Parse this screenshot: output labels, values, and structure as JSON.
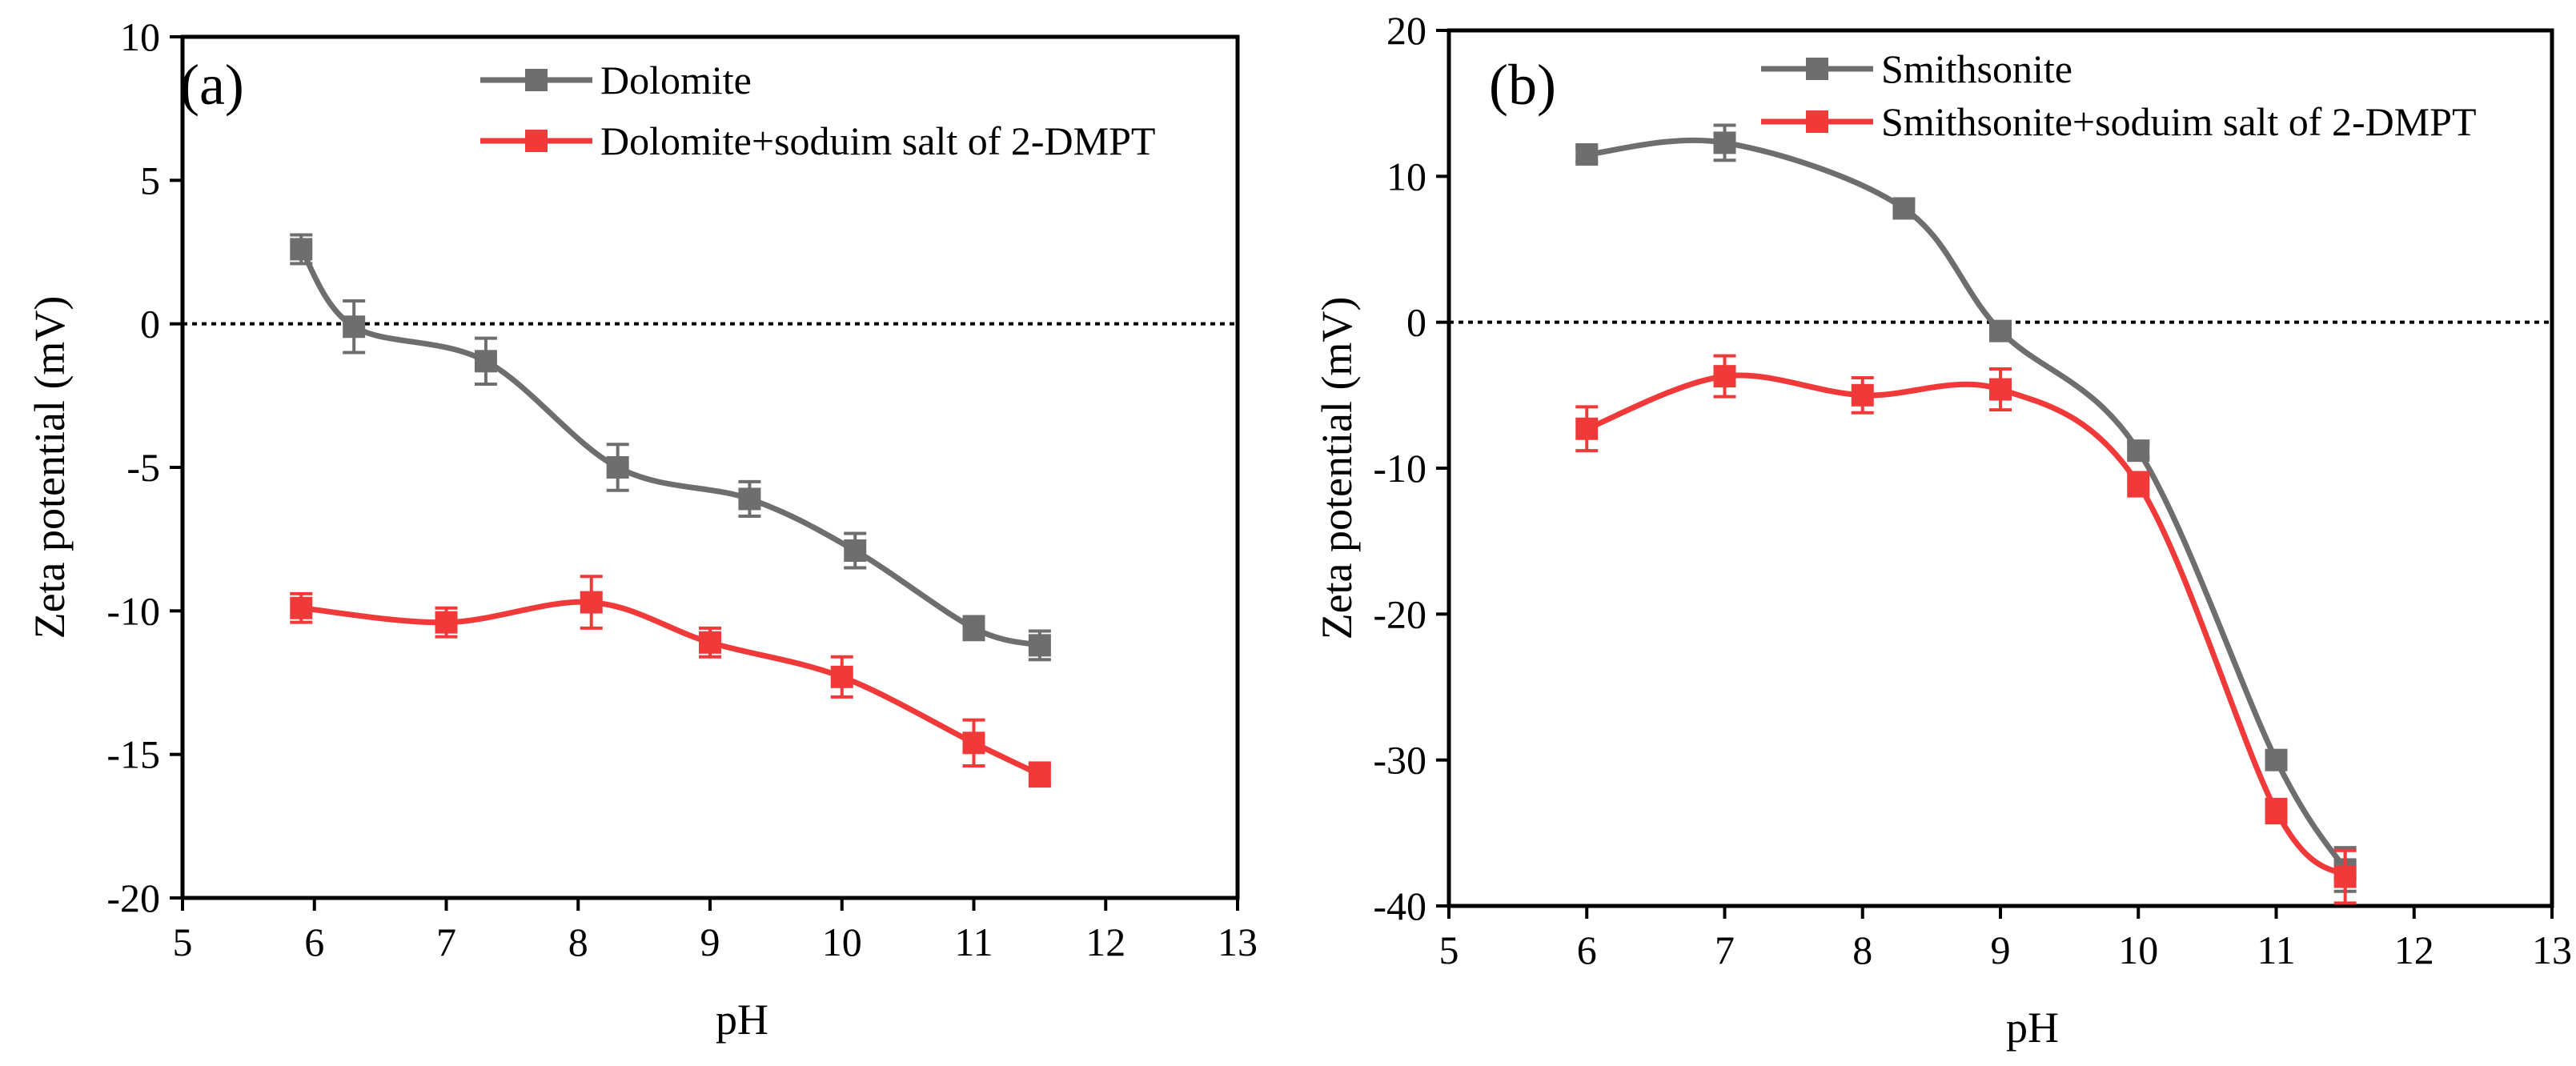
{
  "chart_data": [
    {
      "type": "line",
      "panel_label": "(a)",
      "xlabel": "pH",
      "ylabel": "Zeta potential (mV)",
      "xlim": [
        5,
        13
      ],
      "ylim": [
        -20,
        10
      ],
      "xticks": [
        5,
        6,
        7,
        8,
        9,
        10,
        11,
        12,
        13
      ],
      "yticks": [
        10,
        5,
        0,
        -5,
        -10,
        -15,
        -20
      ],
      "reference_line": 0,
      "legend_position": "top-right",
      "series": [
        {
          "name": "Dolomite",
          "color": "#6e6e6e",
          "x": [
            5.9,
            6.3,
            7.3,
            8.3,
            9.3,
            10.1,
            11.0,
            11.5
          ],
          "y": [
            2.6,
            -0.1,
            -1.3,
            -5.0,
            -6.1,
            -7.9,
            -10.6,
            -11.2
          ],
          "error": [
            0.5,
            0.9,
            0.8,
            0.8,
            0.6,
            0.6,
            0.4,
            0.5
          ]
        },
        {
          "name": "Dolomite+soduim salt of 2-DMPT",
          "color": "#f03a3a",
          "x": [
            5.9,
            7.0,
            8.1,
            9.0,
            10.0,
            11.0,
            11.5
          ],
          "y": [
            -9.9,
            -10.4,
            -9.7,
            -11.1,
            -12.3,
            -14.6,
            -15.7
          ],
          "error": [
            0.5,
            0.5,
            0.9,
            0.5,
            0.7,
            0.8,
            0.4
          ]
        }
      ]
    },
    {
      "type": "line",
      "panel_label": "(b)",
      "xlabel": "pH",
      "ylabel": "Zeta potential (mV)",
      "xlim": [
        5,
        13
      ],
      "ylim": [
        -40,
        20
      ],
      "xticks": [
        5,
        6,
        7,
        8,
        9,
        10,
        11,
        12,
        13
      ],
      "yticks": [
        20,
        10,
        0,
        -10,
        -20,
        -30,
        -40
      ],
      "reference_line": 0,
      "legend_position": "top-right",
      "series": [
        {
          "name": "Smithsonite",
          "color": "#6e6e6e",
          "x": [
            6.0,
            7.0,
            8.3,
            9.0,
            10.0,
            11.0,
            11.5
          ],
          "y": [
            11.5,
            12.3,
            7.8,
            -0.6,
            -8.8,
            -30.0,
            -37.5
          ],
          "error": [
            0.5,
            1.2,
            0.6,
            0.4,
            0.5,
            0.6,
            1.5
          ]
        },
        {
          "name": "Smithsonite+soduim salt of 2-DMPT",
          "color": "#f03a3a",
          "x": [
            6.0,
            7.0,
            8.0,
            9.0,
            10.0,
            11.0,
            11.5
          ],
          "y": [
            -7.3,
            -3.7,
            -5.0,
            -4.6,
            -11.1,
            -33.5,
            -38.0
          ],
          "error": [
            1.5,
            1.4,
            1.2,
            1.4,
            0.8,
            0.8,
            1.8
          ]
        }
      ]
    }
  ]
}
